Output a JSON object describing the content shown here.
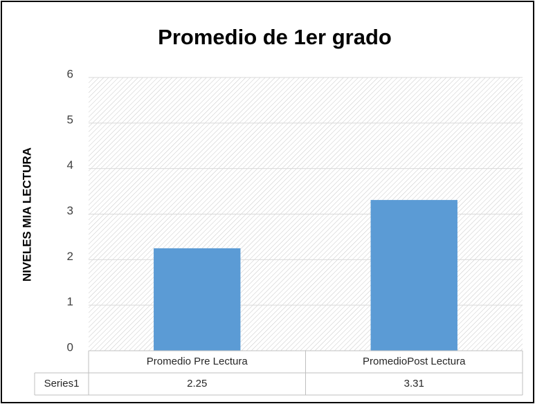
{
  "chart_data": {
    "type": "bar",
    "title": "Promedio de 1er grado",
    "y_label": "NIVELES MIA LECTURA",
    "categories": [
      "Promedio Pre Lectura",
      "PromedioPost Lectura"
    ],
    "series": [
      {
        "name": "Series1",
        "color": "#5b9bd5",
        "values": [
          2.25,
          3.31
        ]
      }
    ],
    "ylim": [
      0,
      6
    ],
    "yticks": [
      0,
      1,
      2,
      3,
      4,
      5,
      6
    ],
    "grid": true
  }
}
